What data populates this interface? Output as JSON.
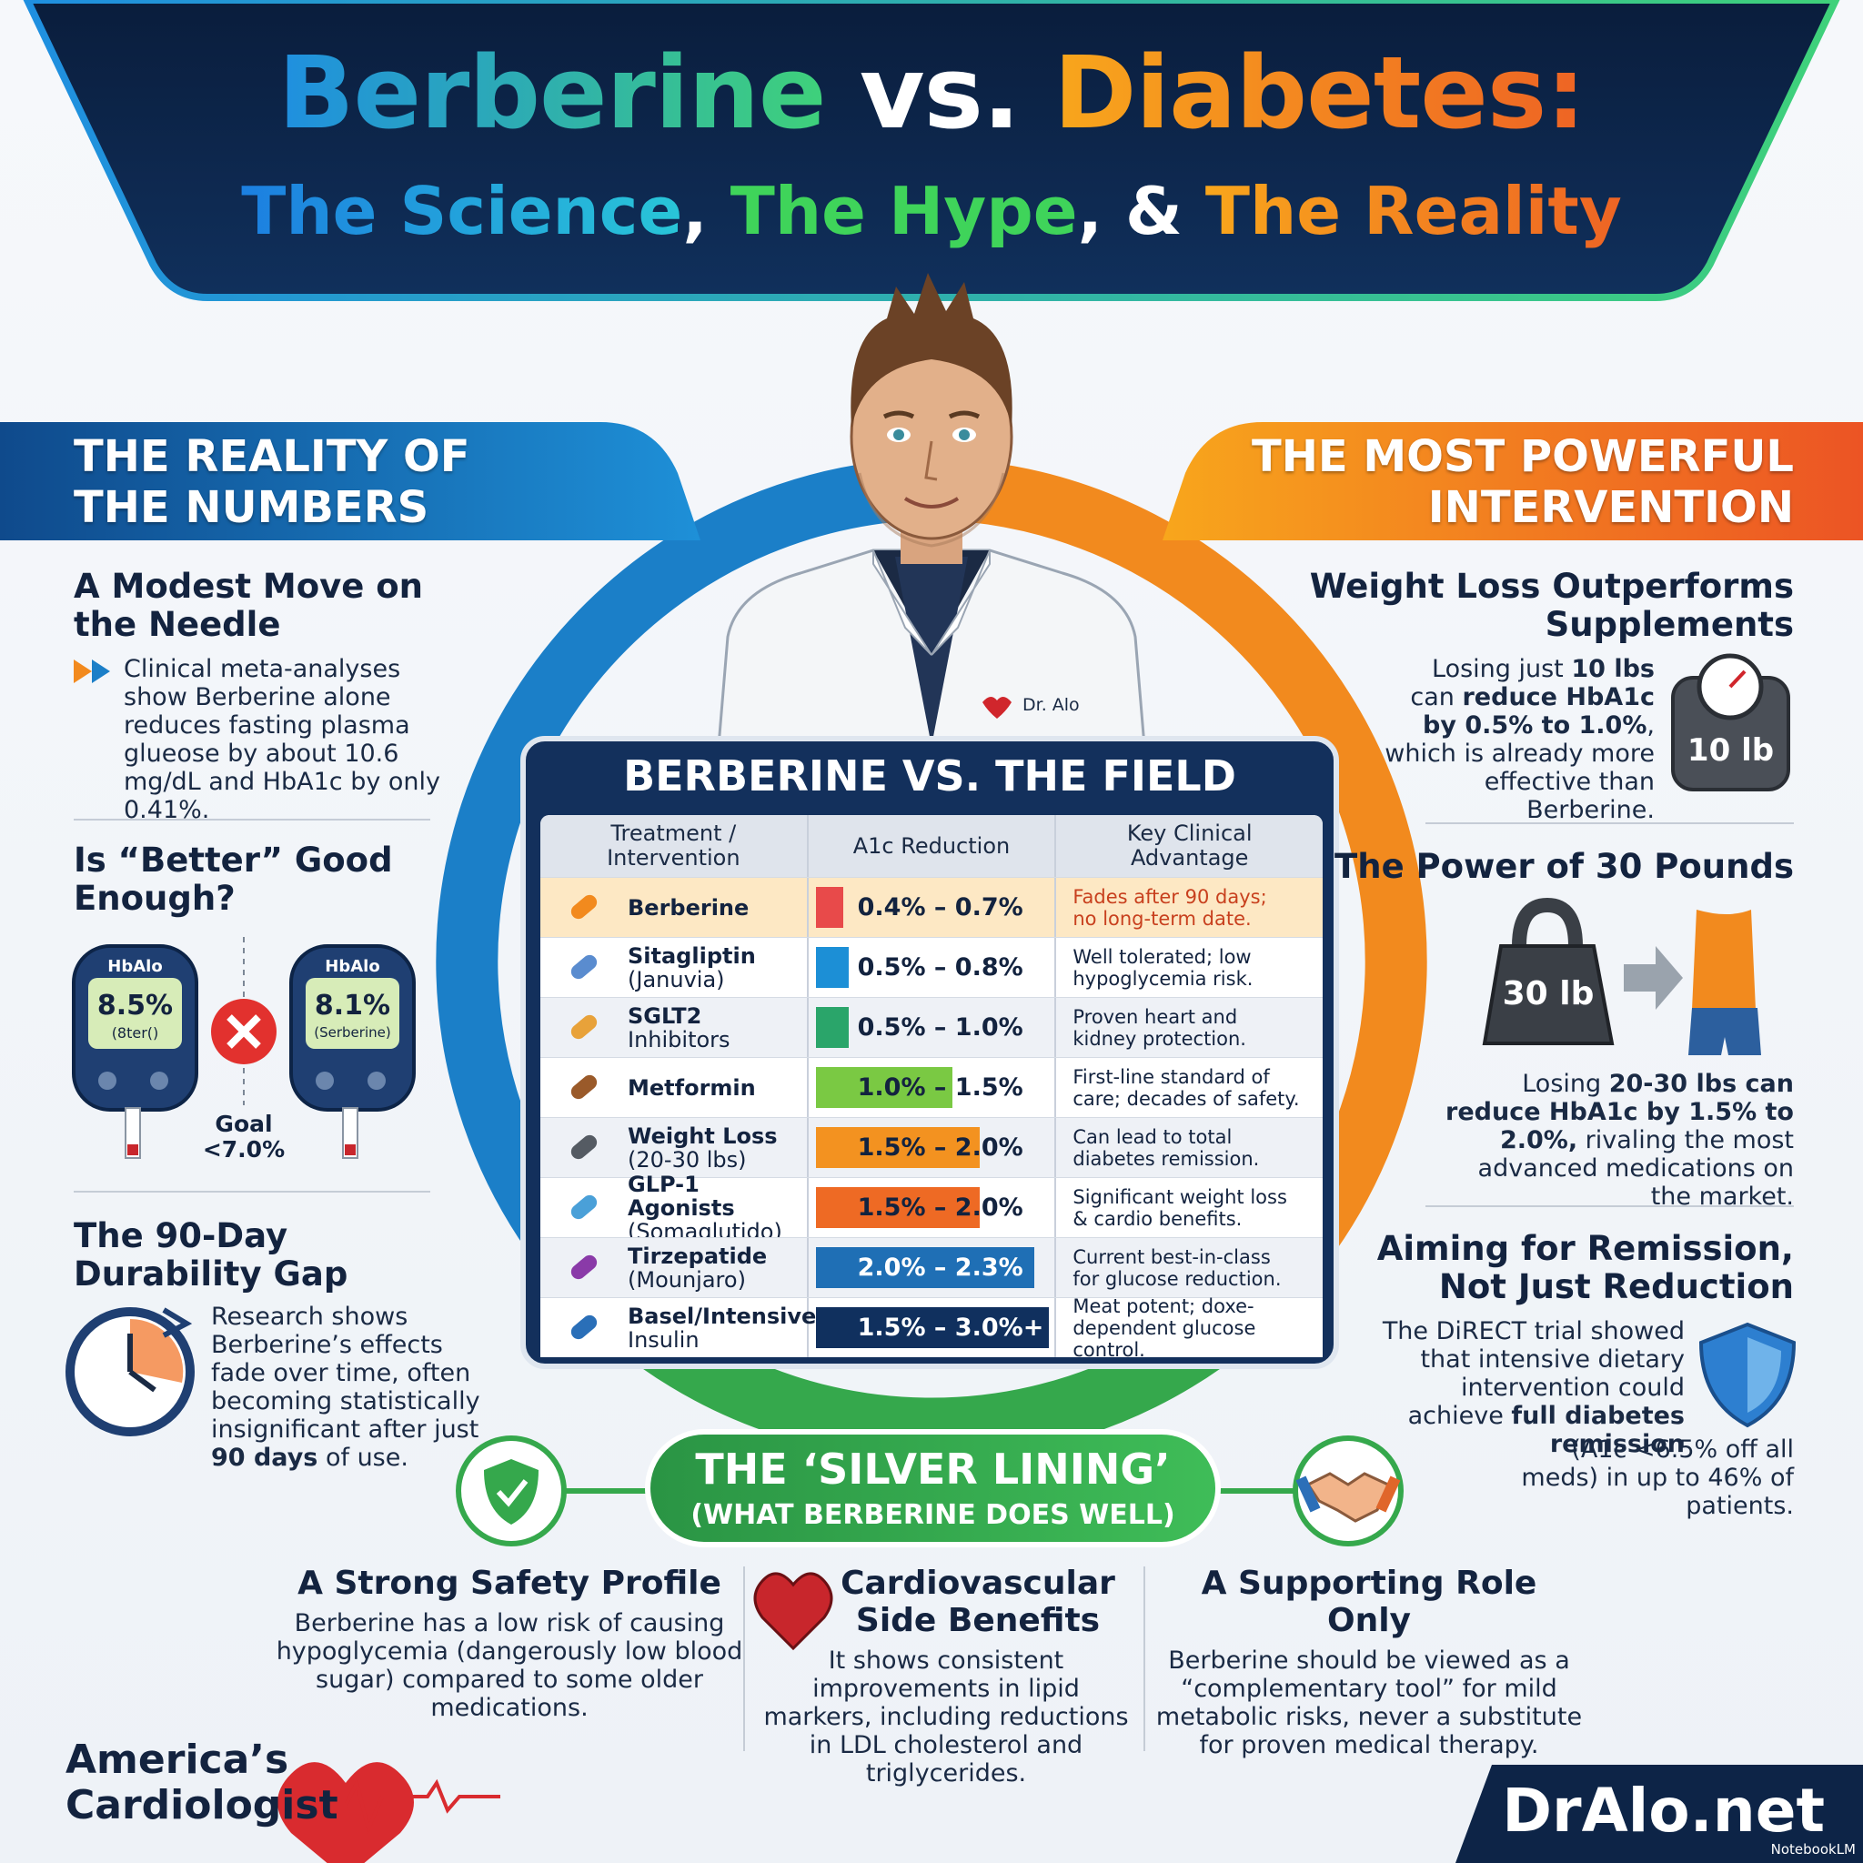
{
  "header": {
    "title": [
      "Berberine",
      "vs.",
      "Diabetes:"
    ],
    "subtitle": [
      "The Science",
      ",",
      "The Hype",
      ", &",
      "The Reality"
    ]
  },
  "left_panel": {
    "heading": [
      "THE REALITY OF",
      "THE NUMBERS"
    ],
    "sections": [
      {
        "title": [
          "A Modest Move on",
          "the Needle"
        ],
        "body": "Clinical meta-analyses show Berberine alone reduces fasting plasma glueose by about 10.6 mg/dL and HbA1c by only 0.41%."
      },
      {
        "title": [
          "Is “Better” Good",
          "Enough?"
        ],
        "meters": [
          {
            "label": "HbAlo",
            "value": "8.5%",
            "caption": "(8ter()"
          },
          {
            "label": "HbAlo",
            "value": "8.1%",
            "caption": "(Serberine)"
          }
        ],
        "goal": [
          "Goal",
          "<7.0%"
        ]
      },
      {
        "title": [
          "The 90-Day",
          "Durability Gap"
        ],
        "body": [
          {
            "text": "Research shows Berberine’s effects fade over time, often becoming statistically insignificant after just "
          },
          {
            "text": "90 days",
            "bold": true
          },
          {
            "text": " of use."
          }
        ]
      }
    ]
  },
  "right_panel": {
    "heading": [
      "THE MOST POWERFUL",
      "INTERVENTION"
    ],
    "sections": [
      {
        "title": [
          "Weight Loss Outperforms",
          "Supplements"
        ],
        "body": [
          {
            "text": "Losing just "
          },
          {
            "text": "10 lbs",
            "bold": true
          },
          {
            "text": " can "
          },
          {
            "text": "reduce HbA1c by 0.5% to 1.0%",
            "bold": true
          },
          {
            "text": ", which is already more effective than Berberine."
          }
        ],
        "icon_label": "10 lb"
      },
      {
        "title": [
          "The Power of 30 Pounds"
        ],
        "icon_label": "30 lb",
        "body": [
          {
            "text": "Losing "
          },
          {
            "text": "20-30 lbs can reduce HbA1c by 1.5% to 2.0%,",
            "bold": true
          },
          {
            "text": " rivaling the most advanced medications on the market."
          }
        ]
      },
      {
        "title": [
          "Aiming for Remission,",
          "Not Just Reduction"
        ],
        "body": [
          {
            "text": "The DiRECT trial showed that intensive dietary intervention could achieve "
          },
          {
            "text": "full diabetes remission",
            "bold": true
          }
        ],
        "note": "(A1c <6.5% off all meds) in up to 46% of patients."
      }
    ]
  },
  "center": {
    "badge": "Dr. Alo",
    "table": {
      "title": "BERBERINE VS. THE FIELD",
      "columns": [
        [
          "Treatment /",
          "Intervention"
        ],
        [
          "A1c Reduction"
        ],
        [
          "Key Clinical",
          "Advantage"
        ]
      ],
      "rows": [
        {
          "name": "Berberine",
          "reduction": "0.4% – 0.7%",
          "advantage": [
            "Fades after 90 days;",
            "no long-term date."
          ]
        },
        {
          "name": "Sitagliptin",
          "sub": "(Januvia)",
          "reduction": "0.5% – 0.8%",
          "advantage": [
            "Well tolerated; low",
            "hypoglycemia risk."
          ]
        },
        {
          "name": "SGLT2",
          "sub": "Inhibitors",
          "reduction": "0.5% – 1.0%",
          "advantage": [
            "Proven heart and",
            "kidney protection."
          ]
        },
        {
          "name": "Metformin",
          "reduction": "1.0% – 1.5%",
          "advantage": [
            "First-line standard of",
            "care; decades of safety."
          ]
        },
        {
          "name": "Weight Loss",
          "sub": "(20-30 lbs)",
          "reduction": "1.5% – 2.0%",
          "advantage": [
            "Can lead to total",
            "diabetes remission."
          ]
        },
        {
          "name": "GLP-1 Agonists",
          "sub": "(Somaglutido)",
          "reduction": "1.5% – 2.0%",
          "advantage": [
            "Significant weight loss",
            "& cardio benefits."
          ]
        },
        {
          "name": "Tirzepatide",
          "sub": "(Mounjaro)",
          "reduction": "2.0% – 2.3%",
          "advantage": [
            "Current best-in-class",
            "for glucose reduction."
          ]
        },
        {
          "name": "Basel/Intensive",
          "sub": "Insulin",
          "reduction": "1.5% – 3.0%+",
          "advantage": [
            "Meat potent; doxe-",
            "dependent glucose control."
          ]
        }
      ]
    }
  },
  "silver_lining": {
    "title": "THE ‘SILVER LINING’",
    "subtitle": "(WHAT BERBERINE DOES WELL)",
    "items": [
      {
        "title": [
          "A Strong Safety Profile"
        ],
        "body": "Berberine has a low risk of causing hypoglycemia (dangerously low blood sugar) compared to some older medications."
      },
      {
        "title": [
          "Cardiovascular",
          "Side Benefits"
        ],
        "body": "It shows consistent improvements in lipid markers, including reductions in LDL cholesterol and triglycerides."
      },
      {
        "title": [
          "A Supporting Role Only"
        ],
        "body": "Berberine should be viewed as a “complementary tool” for mild metabolic risks, never a substitute for proven medical therapy."
      }
    ]
  },
  "footer": {
    "brand": [
      "America’s",
      "Cardiologist"
    ],
    "site": "DrAlo.net",
    "watermark": "NotebookLM"
  }
}
